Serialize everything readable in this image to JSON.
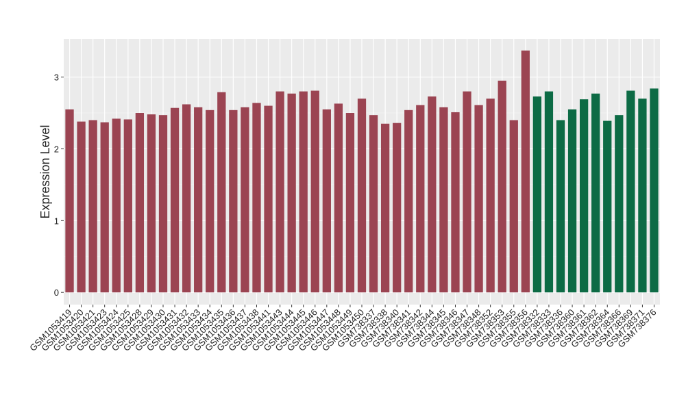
{
  "chart_data": {
    "type": "bar",
    "y_label": "Expression Level",
    "categories": [
      "GSM1053419",
      "GSM1053420",
      "GSM1053421",
      "GSM1053423",
      "GSM1053424",
      "GSM1053425",
      "GSM1053428",
      "GSM1053429",
      "GSM1053430",
      "GSM1053431",
      "GSM1053432",
      "GSM1053433",
      "GSM1053434",
      "GSM1053435",
      "GSM1053436",
      "GSM1053437",
      "GSM1053438",
      "GSM1053441",
      "GSM1053443",
      "GSM1053444",
      "GSM1053445",
      "GSM1053446",
      "GSM1053447",
      "GSM1053448",
      "GSM1053449",
      "GSM1053450",
      "GSM738337",
      "GSM738338",
      "GSM738340",
      "GSM738341",
      "GSM738342",
      "GSM738344",
      "GSM738345",
      "GSM738346",
      "GSM738347",
      "GSM738348",
      "GSM738352",
      "GSM738353",
      "GSM738355",
      "GSM738356",
      "GSM738332",
      "GSM738333",
      "GSM738336",
      "GSM738360",
      "GSM738361",
      "GSM738362",
      "GSM738364",
      "GSM738366",
      "GSM738369",
      "GSM738371",
      "GSM738376"
    ],
    "values": [
      2.55,
      2.38,
      2.4,
      2.37,
      2.42,
      2.41,
      2.5,
      2.48,
      2.47,
      2.57,
      2.62,
      2.58,
      2.54,
      2.79,
      2.54,
      2.58,
      2.64,
      2.6,
      2.8,
      2.77,
      2.8,
      2.81,
      2.55,
      2.63,
      2.5,
      2.7,
      2.47,
      2.35,
      2.36,
      2.54,
      2.61,
      2.73,
      2.58,
      2.51,
      2.8,
      2.61,
      2.7,
      2.95,
      2.4,
      3.37,
      2.73,
      2.8,
      2.4,
      2.55,
      2.69,
      2.77,
      2.39,
      2.47,
      2.81,
      2.7,
      2.84
    ],
    "colors": [
      "#9b4452",
      "#9b4452",
      "#9b4452",
      "#9b4452",
      "#9b4452",
      "#9b4452",
      "#9b4452",
      "#9b4452",
      "#9b4452",
      "#9b4452",
      "#9b4452",
      "#9b4452",
      "#9b4452",
      "#9b4452",
      "#9b4452",
      "#9b4452",
      "#9b4452",
      "#9b4452",
      "#9b4452",
      "#9b4452",
      "#9b4452",
      "#9b4452",
      "#9b4452",
      "#9b4452",
      "#9b4452",
      "#9b4452",
      "#9b4452",
      "#9b4452",
      "#9b4452",
      "#9b4452",
      "#9b4452",
      "#9b4452",
      "#9b4452",
      "#9b4452",
      "#9b4452",
      "#9b4452",
      "#9b4452",
      "#9b4452",
      "#9b4452",
      "#9b4452",
      "#0d6b45",
      "#0d6b45",
      "#0d6b45",
      "#0d6b45",
      "#0d6b45",
      "#0d6b45",
      "#0d6b45",
      "#0d6b45",
      "#0d6b45",
      "#0d6b45",
      "#0d6b45"
    ],
    "ylim": [
      -0.17,
      3.53
    ],
    "yticks": [
      0,
      1,
      2,
      3
    ],
    "grid": true
  }
}
